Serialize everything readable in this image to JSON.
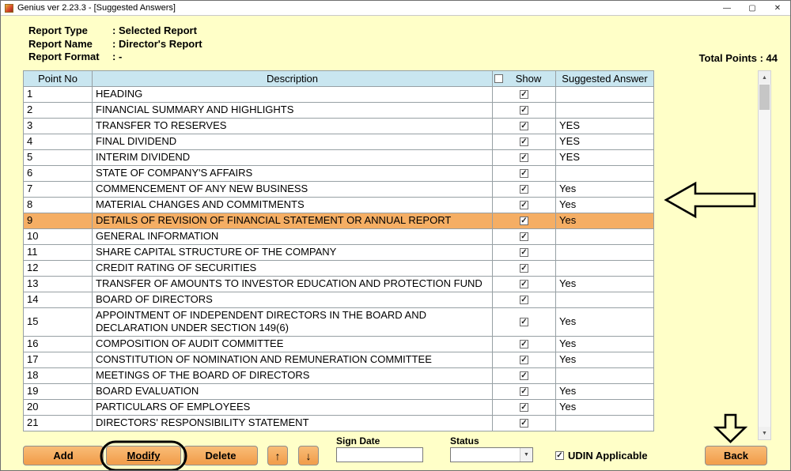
{
  "window": {
    "title": "Genius ver 2.23.3 - [Suggested Answers]",
    "controls": {
      "minimize": "—",
      "maximize": "▢",
      "close": "✕"
    }
  },
  "header": {
    "fields": [
      {
        "label": "Report Type",
        "value": ":  Selected Report"
      },
      {
        "label": "Report Name",
        "value": ":  Director's Report"
      },
      {
        "label": "Report Format",
        "value": ":  -"
      }
    ],
    "total_points": "Total Points : 44"
  },
  "table": {
    "columns": {
      "point_no": "Point No",
      "description": "Description",
      "show": "Show",
      "answer": "Suggested Answer"
    },
    "header_show_checkbox_checked": false,
    "highlighted_point_no": "9",
    "check_glyph": "✓",
    "rows": [
      {
        "point_no": "1",
        "description": "HEADING",
        "show": true,
        "answer": ""
      },
      {
        "point_no": "2",
        "description": "FINANCIAL SUMMARY AND HIGHLIGHTS",
        "show": true,
        "answer": ""
      },
      {
        "point_no": "3",
        "description": "TRANSFER TO RESERVES",
        "show": true,
        "answer": "YES"
      },
      {
        "point_no": "4",
        "description": "FINAL DIVIDEND",
        "show": true,
        "answer": "YES"
      },
      {
        "point_no": "5",
        "description": "INTERIM DIVIDEND",
        "show": true,
        "answer": "YES"
      },
      {
        "point_no": "6",
        "description": "STATE OF COMPANY'S AFFAIRS",
        "show": true,
        "answer": ""
      },
      {
        "point_no": "7",
        "description": "COMMENCEMENT OF ANY NEW BUSINESS",
        "show": true,
        "answer": "Yes"
      },
      {
        "point_no": "8",
        "description": "MATERIAL CHANGES AND COMMITMENTS",
        "show": true,
        "answer": "Yes"
      },
      {
        "point_no": "9",
        "description": "DETAILS OF REVISION OF FINANCIAL STATEMENT OR ANNUAL REPORT",
        "show": true,
        "answer": "Yes"
      },
      {
        "point_no": "10",
        "description": "GENERAL INFORMATION",
        "show": true,
        "answer": ""
      },
      {
        "point_no": "11",
        "description": "SHARE CAPITAL STRUCTURE OF THE COMPANY",
        "show": true,
        "answer": ""
      },
      {
        "point_no": "12",
        "description": "CREDIT RATING OF SECURITIES",
        "show": true,
        "answer": ""
      },
      {
        "point_no": "13",
        "description": "TRANSFER OF AMOUNTS TO INVESTOR EDUCATION AND PROTECTION FUND",
        "show": true,
        "answer": "Yes"
      },
      {
        "point_no": "14",
        "description": "BOARD OF DIRECTORS",
        "show": true,
        "answer": ""
      },
      {
        "point_no": "15",
        "description": "APPOINTMENT OF INDEPENDENT DIRECTORS IN THE BOARD AND DECLARATION UNDER SECTION 149(6)",
        "show": true,
        "answer": "Yes"
      },
      {
        "point_no": "16",
        "description": "COMPOSITION OF AUDIT COMMITTEE",
        "show": true,
        "answer": "Yes"
      },
      {
        "point_no": "17",
        "description": "CONSTITUTION OF NOMINATION AND REMUNERATION COMMITTEE",
        "show": true,
        "answer": "Yes"
      },
      {
        "point_no": "18",
        "description": "MEETINGS OF THE BOARD OF DIRECTORS",
        "show": true,
        "answer": ""
      },
      {
        "point_no": "19",
        "description": "BOARD EVALUATION",
        "show": true,
        "answer": "Yes"
      },
      {
        "point_no": "20",
        "description": "PARTICULARS OF EMPLOYEES",
        "show": true,
        "answer": "Yes"
      },
      {
        "point_no": "21",
        "description": "DIRECTORS' RESPONSIBILITY STATEMENT",
        "show": true,
        "answer": ""
      }
    ]
  },
  "scrollbar": {
    "up": "▲",
    "down": "▼"
  },
  "footer": {
    "buttons": {
      "add": "Add",
      "modify": "Modify",
      "delete": "Delete",
      "move_up": "↑",
      "move_down": "↓",
      "back": "Back"
    },
    "sign_date_label": "Sign Date",
    "sign_date_value": "",
    "status_label": "Status",
    "status_value": "",
    "status_arrow": "▼",
    "udin_label": "UDIN Applicable",
    "udin_checked": true
  },
  "colors": {
    "bg": "#FFFFC8",
    "table_header": "#C9E6F0",
    "highlight": "#F5AE64",
    "button": "#F2A04F",
    "grid_line": "#97A0A4"
  }
}
